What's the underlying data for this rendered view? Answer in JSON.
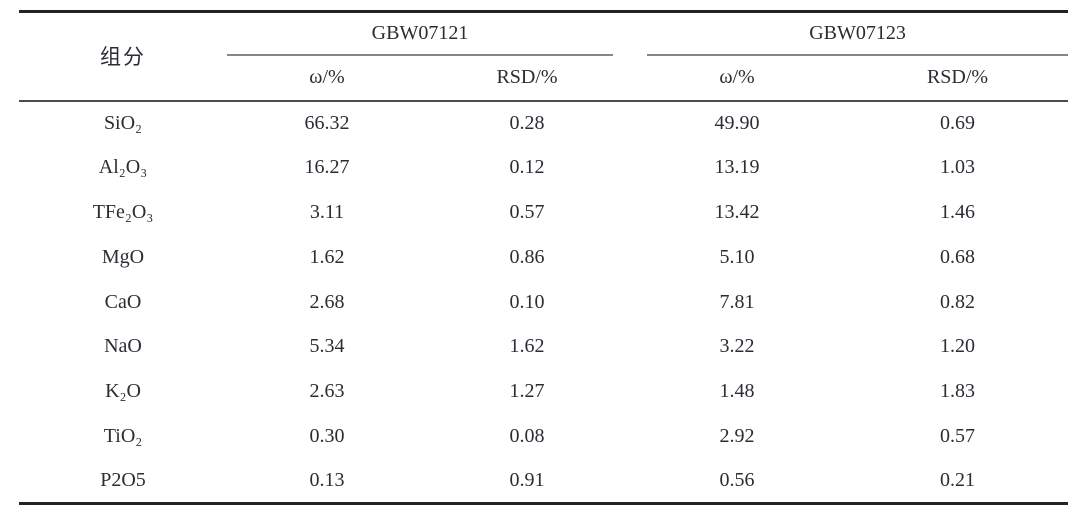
{
  "table": {
    "component_header": "组分",
    "groups": [
      {
        "label": "GBW07121",
        "subcols": [
          "ω/%",
          "RSD/%"
        ]
      },
      {
        "label": "GBW07123",
        "subcols": [
          "ω/%",
          "RSD/%"
        ]
      }
    ],
    "rows": [
      {
        "component": "SiO₂",
        "values": [
          "66.32",
          "0.28",
          "49.90",
          "0.69"
        ]
      },
      {
        "component": "Al₂O₃",
        "values": [
          "16.27",
          "0.12",
          "13.19",
          "1.03"
        ]
      },
      {
        "component": "TFe₂O₃",
        "values": [
          "3.11",
          "0.57",
          "13.42",
          "1.46"
        ]
      },
      {
        "component": "MgO",
        "values": [
          "1.62",
          "0.86",
          "5.10",
          "0.68"
        ]
      },
      {
        "component": "CaO",
        "values": [
          "2.68",
          "0.10",
          "7.81",
          "0.82"
        ]
      },
      {
        "component": "NaO",
        "values": [
          "5.34",
          "1.62",
          "3.22",
          "1.20"
        ]
      },
      {
        "component": "K₂O",
        "values": [
          "2.63",
          "1.27",
          "1.48",
          "1.83"
        ]
      },
      {
        "component": "TiO₂",
        "values": [
          "0.30",
          "0.08",
          "2.92",
          "0.57"
        ]
      },
      {
        "component": "P2O5",
        "values": [
          "0.13",
          "0.91",
          "0.56",
          "0.21"
        ]
      }
    ],
    "colors": {
      "text": "#2c2c34",
      "rule_heavy": "#232327",
      "rule_medium": "#4a4a50",
      "rule_light": "#85858b"
    }
  }
}
